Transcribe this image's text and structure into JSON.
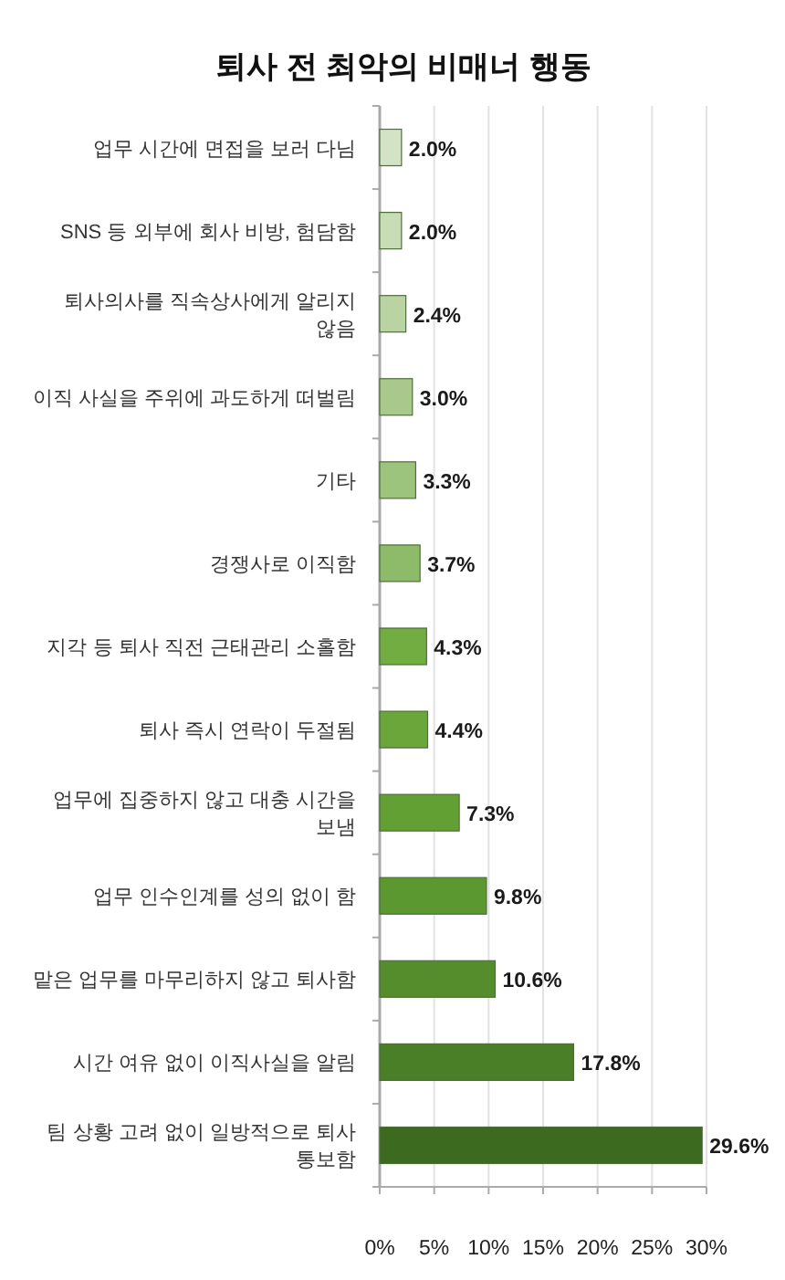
{
  "chart_data": {
    "type": "bar",
    "orientation": "horizontal",
    "title": "퇴사 전 최악의 비매너 행동",
    "categories": [
      "업무 시간에 면접을 보러 다님",
      "SNS 등 외부에 회사 비방, 험담함",
      "퇴사의사를 직속상사에게 알리지 않음",
      "이직 사실을 주위에 과도하게 떠벌림",
      "기타",
      "경쟁사로 이직함",
      "지각 등 퇴사 직전 근태관리 소홀함",
      "퇴사 즉시 연락이 두절됨",
      "업무에 집중하지 않고 대충 시간을 보냄",
      "업무 인수인계를 성의 없이 함",
      "맡은 업무를 마무리하지 않고 퇴사함",
      "시간 여유 없이 이직사실을 알림",
      "팀 상황 고려 없이 일방적으로 퇴사 통보함"
    ],
    "values": [
      2.0,
      2.0,
      2.4,
      3.0,
      3.3,
      3.7,
      4.3,
      4.4,
      7.3,
      9.8,
      10.6,
      17.8,
      29.6
    ],
    "colors": [
      "#d3e3c5",
      "#c8dcb6",
      "#b9d3a2",
      "#a8c98b",
      "#9dc47d",
      "#8dbb69",
      "#72ad42",
      "#6aa63a",
      "#63a033",
      "#5c9830",
      "#558d2c",
      "#4a7e27",
      "#3c6a1f"
    ],
    "value_labels": [
      "2.0%",
      "2.0%",
      "2.4%",
      "3.0%",
      "3.3%",
      "3.7%",
      "4.3%",
      "4.4%",
      "7.3%",
      "9.8%",
      "10.6%",
      "17.8%",
      "29.6%"
    ],
    "xlim": [
      0,
      30
    ],
    "xticks": [
      {
        "value": 0,
        "label": "0%"
      },
      {
        "value": 5,
        "label": "5%"
      },
      {
        "value": 10,
        "label": "10%"
      },
      {
        "value": 15,
        "label": "15%"
      },
      {
        "value": 20,
        "label": "20%"
      },
      {
        "value": 25,
        "label": "25%"
      },
      {
        "value": 30,
        "label": "30%"
      }
    ],
    "grid": "x"
  }
}
